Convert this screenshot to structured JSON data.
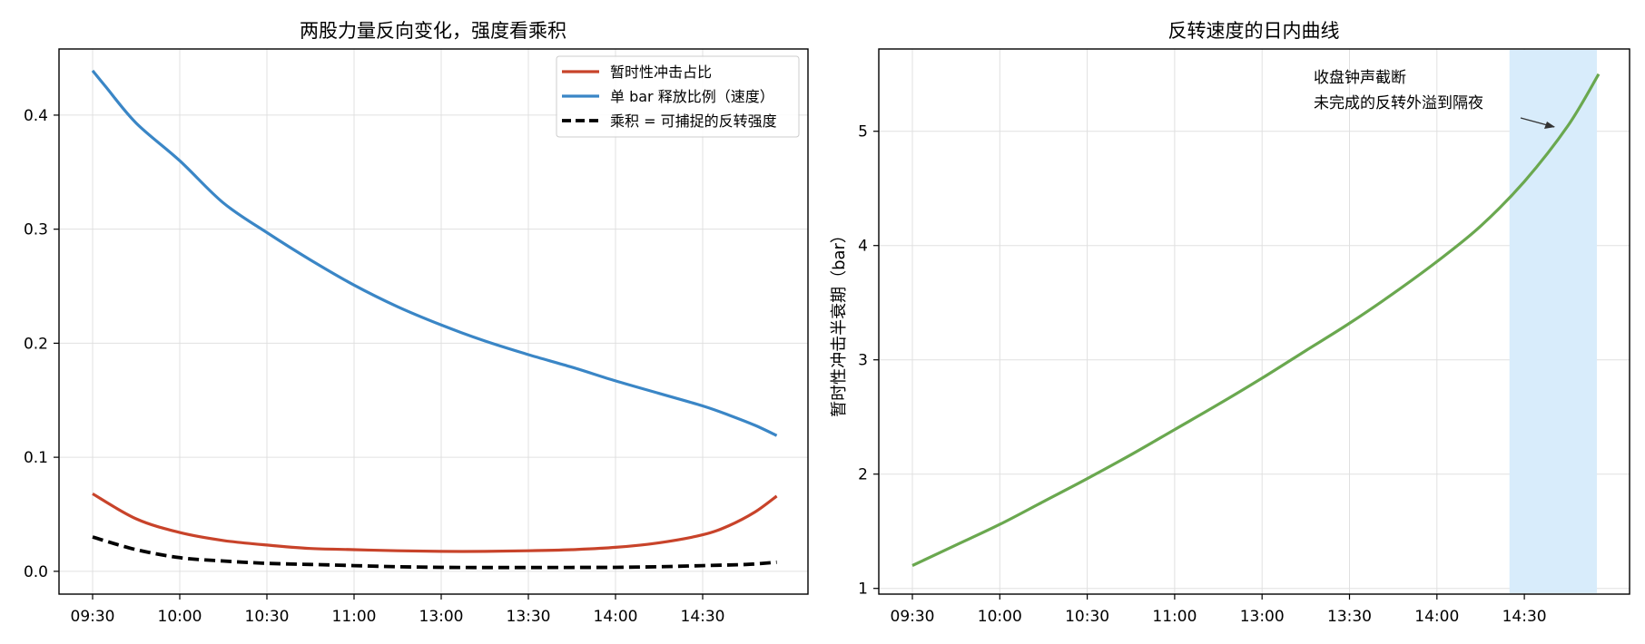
{
  "chart_data": [
    {
      "type": "line",
      "title": "两股力量反向变化，强度看乘积",
      "xlabel": "",
      "ylabel": "",
      "x_ticks": [
        "09:30",
        "10:00",
        "10:30",
        "11:00",
        "13:00",
        "13:30",
        "14:00",
        "14:30"
      ],
      "x_range": [
        0,
        8
      ],
      "ylim": [
        -0.02,
        0.458
      ],
      "y_ticks": [
        "0.0",
        "0.1",
        "0.2",
        "0.3",
        "0.4"
      ],
      "y_tick_values": [
        0.0,
        0.1,
        0.2,
        0.3,
        0.4
      ],
      "grid": true,
      "legend_position": "top-right",
      "series": [
        {
          "name": "暂时性冲击占比",
          "color": "#c8432a",
          "style": "solid",
          "x": [
            0,
            0.5,
            1,
            1.5,
            2,
            2.5,
            3,
            3.5,
            4,
            4.5,
            5,
            5.5,
            6,
            6.5,
            7,
            7.3,
            7.6,
            7.85
          ],
          "values": [
            0.068,
            0.046,
            0.034,
            0.027,
            0.023,
            0.02,
            0.019,
            0.018,
            0.0175,
            0.0175,
            0.018,
            0.019,
            0.021,
            0.025,
            0.032,
            0.04,
            0.052,
            0.066
          ]
        },
        {
          "name": "单 bar 释放比例（速度）",
          "color": "#3a86c6",
          "style": "solid",
          "x": [
            0,
            0.15,
            0.5,
            1,
            1.5,
            2,
            2.5,
            3,
            3.5,
            4,
            4.5,
            5,
            5.5,
            6,
            6.5,
            7,
            7.3,
            7.6,
            7.85
          ],
          "values": [
            0.439,
            0.425,
            0.393,
            0.36,
            0.323,
            0.297,
            0.273,
            0.251,
            0.232,
            0.216,
            0.202,
            0.19,
            0.179,
            0.167,
            0.156,
            0.145,
            0.137,
            0.128,
            0.119
          ]
        },
        {
          "name": "乘积 = 可捕捉的反转强度",
          "color": "#000000",
          "style": "dashed",
          "x": [
            0,
            0.5,
            1,
            1.5,
            2,
            2.5,
            3,
            3.5,
            4,
            4.5,
            5,
            5.5,
            6,
            6.5,
            7,
            7.5,
            7.85
          ],
          "values": [
            0.03,
            0.019,
            0.012,
            0.009,
            0.007,
            0.006,
            0.005,
            0.004,
            0.0035,
            0.0033,
            0.0033,
            0.0034,
            0.0035,
            0.004,
            0.005,
            0.006,
            0.008
          ]
        }
      ]
    },
    {
      "type": "line",
      "title": "反转速度的日内曲线",
      "xlabel": "",
      "ylabel": "暂时性冲击半衰期（bar）",
      "x_ticks": [
        "09:30",
        "10:00",
        "10:30",
        "11:00",
        "13:00",
        "13:30",
        "14:00",
        "14:30"
      ],
      "x_range": [
        0,
        8
      ],
      "ylim": [
        0.95,
        5.72
      ],
      "y_ticks": [
        "1",
        "2",
        "3",
        "4",
        "5"
      ],
      "y_tick_values": [
        1,
        2,
        3,
        4,
        5
      ],
      "grid": true,
      "shaded_region": {
        "x": [
          6.83,
          7.83
        ],
        "color": "#d8ecfb"
      },
      "annotation": {
        "lines": [
          "收盘钟声截断",
          "未完成的反转外溢到隔夜"
        ]
      },
      "series": [
        {
          "name": "",
          "color": "#6aa84f",
          "style": "solid",
          "x": [
            0,
            0.5,
            1,
            1.5,
            2,
            2.5,
            3,
            3.5,
            4,
            4.5,
            5,
            5.5,
            6,
            6.5,
            7,
            7.5,
            7.85
          ],
          "values": [
            1.2,
            1.38,
            1.56,
            1.76,
            1.96,
            2.17,
            2.39,
            2.61,
            2.84,
            3.08,
            3.32,
            3.58,
            3.86,
            4.17,
            4.56,
            5.05,
            5.5
          ]
        }
      ]
    }
  ]
}
